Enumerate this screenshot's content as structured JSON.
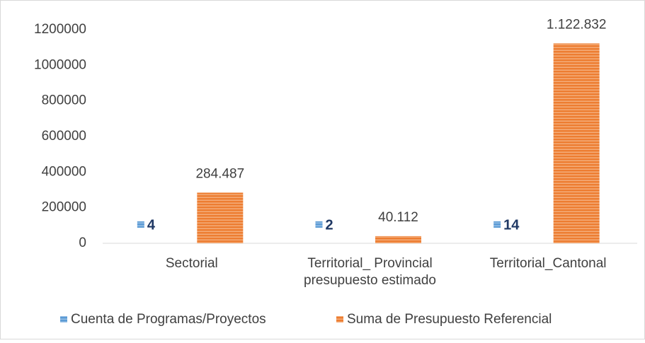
{
  "chart_data": {
    "type": "bar",
    "categories": [
      "Sectorial",
      "Territorial_ Provincial\npresupuesto estimado",
      "Territorial_Cantonal"
    ],
    "series": [
      {
        "name": "Cuenta de Programas/Proyectos",
        "color": "#5b9bd5",
        "values": [
          4,
          2,
          14
        ],
        "value_labels": [
          "4",
          "2",
          "14"
        ]
      },
      {
        "name": "Suma de Presupuesto Referencial",
        "color": "#ed7d31",
        "values": [
          284487,
          40112,
          1122832
        ],
        "value_labels": [
          "284.487",
          "40.112",
          "1.122.832"
        ]
      }
    ],
    "ylim": [
      0,
      1200000
    ],
    "yticks": [
      0,
      200000,
      400000,
      600000,
      800000,
      1000000,
      1200000
    ],
    "grid": false,
    "legend": "bottom"
  }
}
